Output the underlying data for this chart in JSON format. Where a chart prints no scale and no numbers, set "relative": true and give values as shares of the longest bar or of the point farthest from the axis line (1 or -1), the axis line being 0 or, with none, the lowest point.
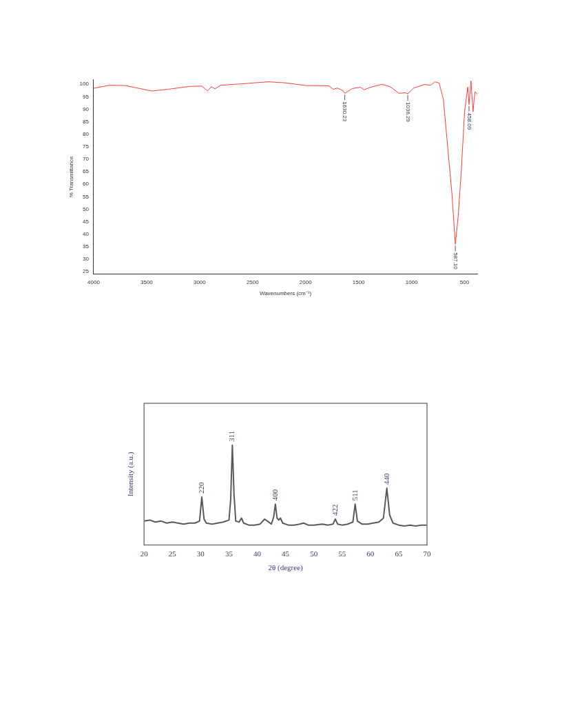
{
  "chart_data": [
    {
      "type": "line",
      "xlabel": "Wavenumbers (cm⁻¹)",
      "ylabel": "% Transmittance",
      "xlim": [
        4000,
        380
      ],
      "ylim": [
        24,
        102
      ],
      "xticks": [
        4000,
        3500,
        3000,
        2500,
        2000,
        1500,
        1000,
        500
      ],
      "yticks": [
        25,
        30,
        35,
        40,
        45,
        50,
        55,
        60,
        65,
        70,
        75,
        80,
        85,
        90,
        95,
        100
      ],
      "x": [
        4000,
        3850,
        3700,
        3600,
        3450,
        3300,
        3100,
        2980,
        2925,
        2890,
        2855,
        2800,
        2600,
        2350,
        2200,
        2000,
        1780,
        1740,
        1700,
        1650,
        1630,
        1560,
        1480,
        1450,
        1380,
        1280,
        1200,
        1120,
        1060,
        1036,
        980,
        880,
        820,
        780,
        740,
        700,
        660,
        620,
        587,
        560,
        530,
        500,
        470,
        458,
        440,
        420,
        410,
        400,
        380
      ],
      "series": [
        {
          "color": "#ff3b3b",
          "values": [
            98.4,
            99.6,
            99.5,
            98.6,
            97.3,
            98.0,
            99.1,
            99.3,
            97.3,
            99.0,
            98.2,
            99.6,
            100.2,
            101.0,
            100.6,
            99.5,
            99.4,
            98.0,
            98.5,
            97.5,
            96.4,
            98.3,
            98.8,
            97.8,
            98.9,
            100.0,
            99.0,
            96.4,
            96.6,
            96.2,
            98.5,
            99.9,
            99.6,
            101.0,
            100.5,
            94,
            75.2,
            56.6,
            36,
            47.4,
            66,
            89,
            98.9,
            91.9,
            101.4,
            89,
            94,
            97,
            96
          ]
        }
      ],
      "annotations": [
        {
          "text": "1630.23",
          "x": 1630,
          "y": 96.4
        },
        {
          "text": "1036.29",
          "x": 1036,
          "y": 96.2
        },
        {
          "text": "587.10",
          "x": 587,
          "y": 36
        },
        {
          "text": "458.09",
          "x": 458,
          "y": 91.9
        }
      ]
    },
    {
      "type": "line",
      "relative": true,
      "tick_labels": "x",
      "xlabel": "2θ (degree)",
      "ylabel": "Intensity (a.u.)",
      "xlim": [
        20,
        70
      ],
      "xticks": [
        20,
        25,
        30,
        35,
        40,
        45,
        50,
        55,
        60,
        65,
        70
      ],
      "x": [
        20,
        21,
        22,
        23,
        24,
        25,
        26,
        27,
        28,
        29,
        29.8,
        30.2,
        30.6,
        31,
        32,
        33,
        34,
        35,
        35.3,
        35.6,
        35.9,
        36.2,
        36.8,
        37.2,
        37.6,
        38.5,
        39.5,
        40.5,
        41.3,
        41.8,
        42.5,
        42.9,
        43.2,
        43.5,
        43.8,
        44.1,
        44.5,
        45.5,
        46.5,
        47.5,
        48.2,
        49,
        50,
        51.5,
        52.5,
        53.4,
        53.8,
        54.2,
        55,
        56,
        56.9,
        57.3,
        57.7,
        58.5,
        59.5,
        60.5,
        61.5,
        62.3,
        62.9,
        63.4,
        64,
        65,
        66,
        67,
        68,
        69,
        70
      ],
      "series": [
        {
          "color": "#595959",
          "values": [
            0.24,
            0.25,
            0.23,
            0.24,
            0.22,
            0.23,
            0.22,
            0.21,
            0.22,
            0.22,
            0.24,
            0.48,
            0.26,
            0.22,
            0.21,
            0.22,
            0.23,
            0.25,
            0.45,
            1,
            0.5,
            0.24,
            0.23,
            0.27,
            0.22,
            0.2,
            0.2,
            0.21,
            0.26,
            0.24,
            0.21,
            0.28,
            0.41,
            0.27,
            0.25,
            0.27,
            0.22,
            0.2,
            0.2,
            0.21,
            0.22,
            0.2,
            0.2,
            0.21,
            0.2,
            0.21,
            0.26,
            0.21,
            0.2,
            0.21,
            0.23,
            0.41,
            0.24,
            0.21,
            0.21,
            0.22,
            0.23,
            0.27,
            0.57,
            0.3,
            0.22,
            0.2,
            0.19,
            0.2,
            0.19,
            0.2,
            0.2
          ]
        }
      ],
      "annotations": [
        {
          "text": "220",
          "x": 30.2,
          "y": 0.48
        },
        {
          "text": "311",
          "x": 35.6,
          "y": 1
        },
        {
          "text": "400",
          "x": 43.2,
          "y": 0.41
        },
        {
          "text": "422",
          "x": 53.8,
          "y": 0.26
        },
        {
          "text": "511",
          "x": 57.3,
          "y": 0.41
        },
        {
          "text": "440",
          "x": 62.9,
          "y": 0.57
        }
      ]
    }
  ]
}
